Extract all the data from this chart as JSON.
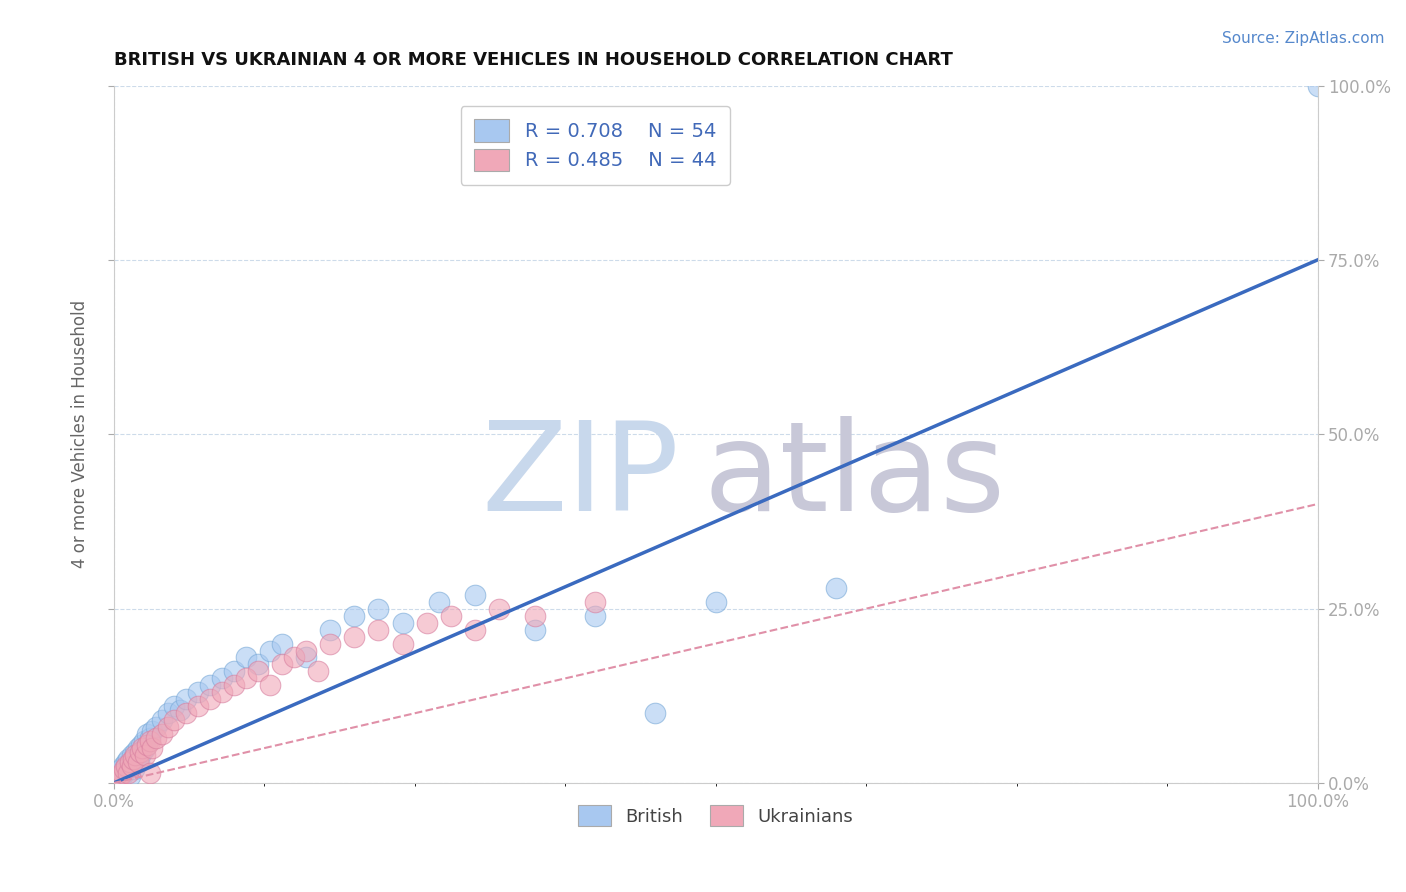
{
  "title": "BRITISH VS UKRAINIAN 4 OR MORE VEHICLES IN HOUSEHOLD CORRELATION CHART",
  "source": "Source: ZipAtlas.com",
  "ylabel": "4 or more Vehicles in Household",
  "ytick_labels": [
    "0.0%",
    "25.0%",
    "50.0%",
    "75.0%",
    "100.0%"
  ],
  "ytick_values": [
    0.0,
    25.0,
    50.0,
    75.0,
    100.0
  ],
  "legend_r_british": "R = 0.708",
  "legend_n_british": "N = 54",
  "legend_r_ukrainian": "R = 0.485",
  "legend_n_ukrainian": "N = 44",
  "british_color": "#a8c8f0",
  "ukrainian_color": "#f0a8b8",
  "british_line_color": "#3a6abf",
  "ukrainian_line_color": "#e090a8",
  "watermark_zip": "ZIP",
  "watermark_atlas": "atlas",
  "watermark_color_zip": "#c8d8ec",
  "watermark_color_atlas": "#c8c8d8",
  "british_scatter_x": [
    0.2,
    0.4,
    0.5,
    0.6,
    0.7,
    0.8,
    0.9,
    1.0,
    1.1,
    1.2,
    1.3,
    1.4,
    1.5,
    1.6,
    1.7,
    1.8,
    1.9,
    2.0,
    2.1,
    2.2,
    2.3,
    2.4,
    2.5,
    2.6,
    2.8,
    3.0,
    3.2,
    3.5,
    4.0,
    4.5,
    5.0,
    5.5,
    6.0,
    7.0,
    8.0,
    9.0,
    10.0,
    11.0,
    12.0,
    13.0,
    14.0,
    16.0,
    18.0,
    20.0,
    22.0,
    24.0,
    27.0,
    30.0,
    35.0,
    40.0,
    45.0,
    50.0,
    60.0,
    100.0
  ],
  "british_scatter_y": [
    0.5,
    1.0,
    1.5,
    2.0,
    1.0,
    2.5,
    1.5,
    3.0,
    2.0,
    3.5,
    2.5,
    1.0,
    4.0,
    3.0,
    2.0,
    4.5,
    3.5,
    5.0,
    3.0,
    4.0,
    5.5,
    4.5,
    6.0,
    5.0,
    7.0,
    6.5,
    7.5,
    8.0,
    9.0,
    10.0,
    11.0,
    10.5,
    12.0,
    13.0,
    14.0,
    15.0,
    16.0,
    18.0,
    17.0,
    19.0,
    20.0,
    18.0,
    22.0,
    24.0,
    25.0,
    23.0,
    26.0,
    27.0,
    22.0,
    24.0,
    10.0,
    26.0,
    28.0,
    100.0
  ],
  "ukrainian_scatter_x": [
    0.3,
    0.5,
    0.7,
    0.9,
    1.0,
    1.2,
    1.4,
    1.5,
    1.6,
    1.8,
    2.0,
    2.2,
    2.4,
    2.6,
    2.8,
    3.0,
    3.2,
    3.5,
    4.0,
    4.5,
    5.0,
    6.0,
    7.0,
    8.0,
    9.0,
    10.0,
    11.0,
    12.0,
    13.0,
    14.0,
    15.0,
    16.0,
    17.0,
    18.0,
    20.0,
    22.0,
    24.0,
    26.0,
    28.0,
    30.0,
    32.0,
    35.0,
    40.0,
    3.0
  ],
  "ukrainian_scatter_y": [
    0.5,
    1.0,
    1.5,
    2.0,
    2.5,
    1.5,
    3.0,
    2.5,
    3.5,
    4.0,
    3.0,
    4.5,
    5.0,
    4.0,
    5.5,
    6.0,
    5.0,
    6.5,
    7.0,
    8.0,
    9.0,
    10.0,
    11.0,
    12.0,
    13.0,
    14.0,
    15.0,
    16.0,
    14.0,
    17.0,
    18.0,
    19.0,
    16.0,
    20.0,
    21.0,
    22.0,
    20.0,
    23.0,
    24.0,
    22.0,
    25.0,
    24.0,
    26.0,
    1.5
  ],
  "british_trend_x": [
    0.0,
    100.0
  ],
  "british_trend_y": [
    0.0,
    75.0
  ],
  "ukrainian_trend_x": [
    0.0,
    100.0
  ],
  "ukrainian_trend_y": [
    0.0,
    40.0
  ],
  "xlim": [
    0.0,
    100.0
  ],
  "ylim": [
    0.0,
    100.0
  ],
  "title_fontsize": 13,
  "source_fontsize": 11,
  "tick_label_fontsize": 12,
  "ylabel_fontsize": 12,
  "legend_fontsize": 14
}
